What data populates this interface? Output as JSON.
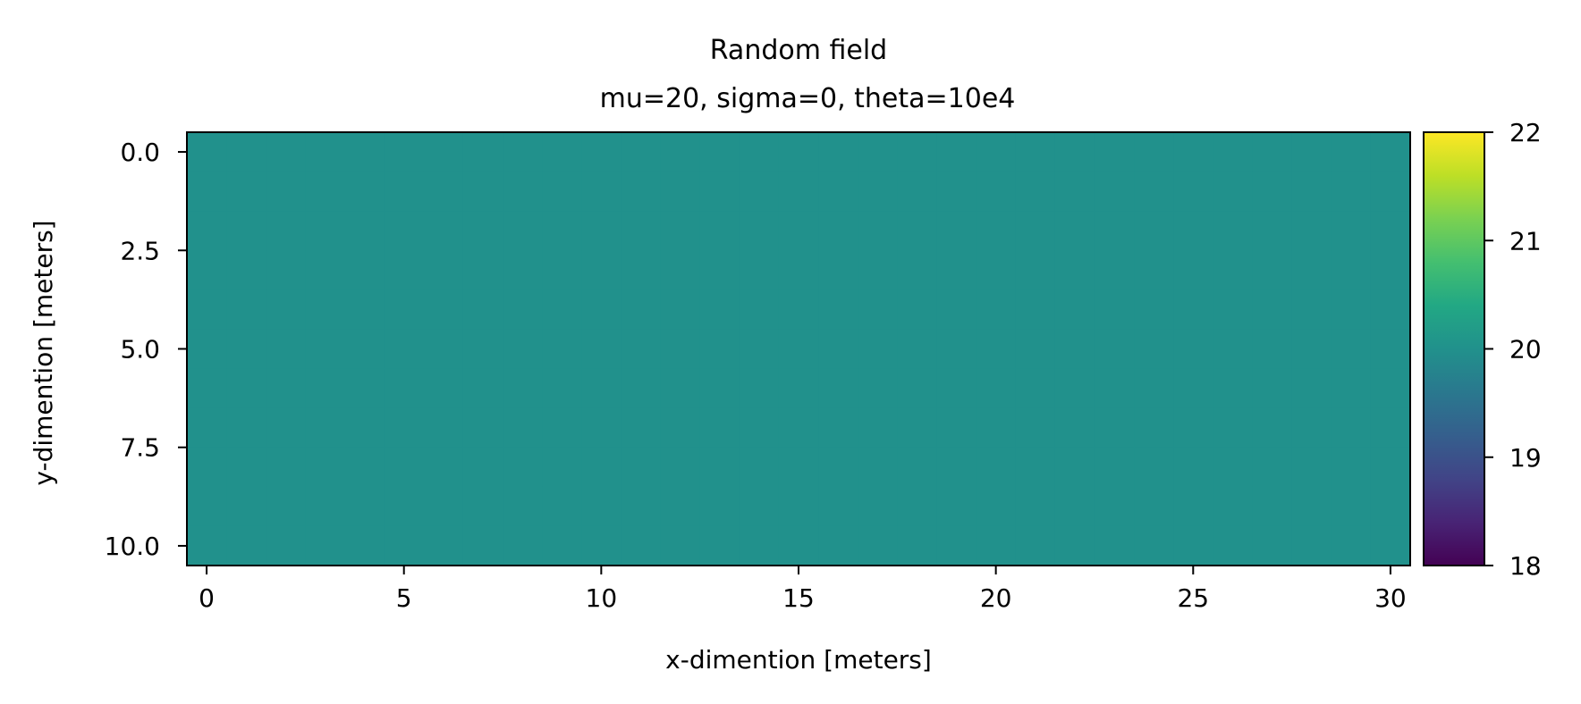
{
  "chart_data": {
    "type": "heatmap",
    "title": "Random field",
    "subtitle": "mu=20, sigma=0, theta=10e4",
    "xlabel": "x-dimention [meters]",
    "ylabel": "y-dimention [meters]",
    "xlim": [
      -0.5,
      30.5
    ],
    "ylim": [
      10.5,
      -0.5
    ],
    "x_ticks": [
      0,
      5,
      10,
      15,
      20,
      25,
      30
    ],
    "x_tick_labels": [
      "0",
      "5",
      "10",
      "15",
      "20",
      "25",
      "30"
    ],
    "y_ticks": [
      0,
      2.5,
      5,
      7.5,
      10
    ],
    "y_tick_labels": [
      "0.0",
      "2.5",
      "5.0",
      "7.5",
      "10.0"
    ],
    "grid_shape": [
      11,
      31
    ],
    "field_value": 20,
    "colormap": "viridis",
    "colorbar": {
      "min": 18,
      "max": 22,
      "ticks": [
        18,
        19,
        20,
        21,
        22
      ],
      "tick_labels": [
        "18",
        "19",
        "20",
        "21",
        "22"
      ]
    },
    "grid": false
  }
}
